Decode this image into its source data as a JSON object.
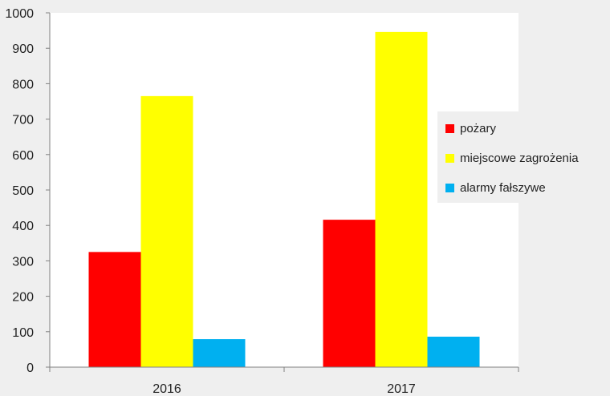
{
  "chart_data": {
    "type": "bar",
    "categories": [
      "2016",
      "2017"
    ],
    "series": [
      {
        "name": "pożary",
        "values": [
          325,
          416
        ],
        "color": "#ff0000"
      },
      {
        "name": "miejscowe zagrożenia",
        "values": [
          765,
          946
        ],
        "color": "#ffff00"
      },
      {
        "name": "alarmy fałszywe",
        "values": [
          79,
          86
        ],
        "color": "#00b0f0"
      }
    ],
    "y_ticks": [
      "0",
      "100",
      "200",
      "300",
      "400",
      "500",
      "600",
      "700",
      "800",
      "900",
      "1000"
    ],
    "ylim": [
      0,
      1000
    ],
    "grid": false,
    "legend_position": "right",
    "plot_background": "#ffffff",
    "page_background": "#efefef",
    "axis_color": "#808080"
  }
}
